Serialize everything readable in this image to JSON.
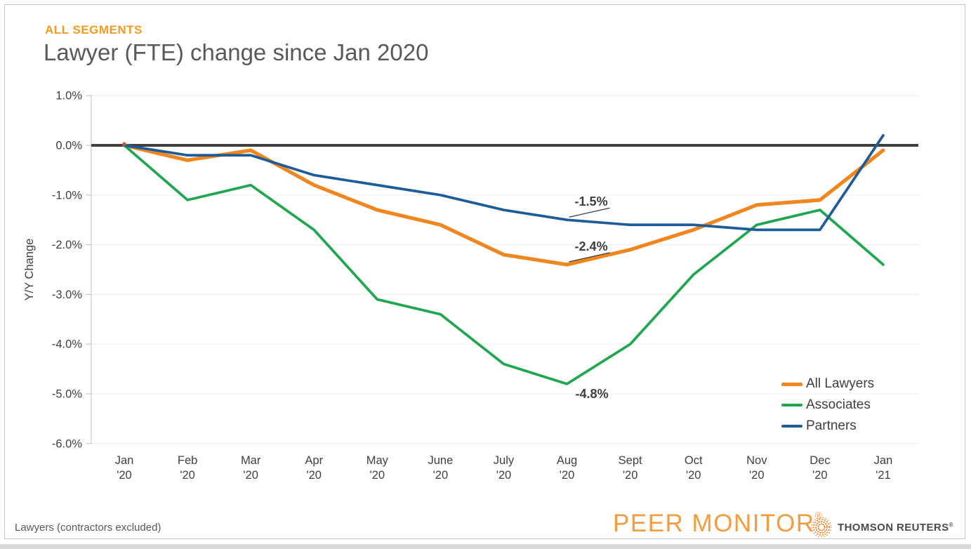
{
  "header": {
    "segment_label": "ALL SEGMENTS",
    "title": "Lawyer (FTE) change since Jan 2020"
  },
  "chart_data": {
    "type": "line",
    "title": "Lawyer (FTE) change since Jan 2020",
    "xlabel": "",
    "ylabel": "Y/Y Change",
    "ylim": [
      -6.0,
      1.0
    ],
    "grid": true,
    "legend_position": "inside-bottom-right",
    "yticks": [
      "1.0%",
      "0.0%",
      "-1.0%",
      "-2.0%",
      "-3.0%",
      "-4.0%",
      "-5.0%",
      "-6.0%"
    ],
    "categories": [
      "Jan '20",
      "Feb '20",
      "Mar '20",
      "Apr '20",
      "May '20",
      "June '20",
      "July '20",
      "Aug '20",
      "Sept '20",
      "Oct '20",
      "Nov '20",
      "Dec '20",
      "Jan '21"
    ],
    "series": [
      {
        "name": "All Lawyers",
        "color": "#F0871E",
        "values": [
          0.0,
          -0.3,
          -0.1,
          -0.8,
          -1.3,
          -1.6,
          -2.2,
          -2.4,
          -2.1,
          -1.7,
          -1.2,
          -1.1,
          -0.1
        ]
      },
      {
        "name": "Associates",
        "color": "#1FA750",
        "values": [
          0.0,
          -1.1,
          -0.8,
          -1.7,
          -3.1,
          -3.4,
          -4.4,
          -4.8,
          -4.0,
          -2.6,
          -1.6,
          -1.3,
          -2.4
        ]
      },
      {
        "name": "Partners",
        "color": "#1D5C99",
        "values": [
          0.0,
          -0.2,
          -0.2,
          -0.6,
          -0.8,
          -1.0,
          -1.3,
          -1.5,
          -1.6,
          -1.6,
          -1.7,
          -1.7,
          0.2
        ]
      }
    ],
    "annotations": [
      {
        "text": "-1.5%",
        "series": "Partners",
        "category": "Aug '20",
        "value": -1.5
      },
      {
        "text": "-2.4%",
        "series": "All Lawyers",
        "category": "Aug '20",
        "value": -2.4
      },
      {
        "text": "-4.8%",
        "series": "Associates",
        "category": "Aug '20",
        "value": -4.8
      }
    ]
  },
  "footer": {
    "note": "Lawyers (contractors excluded)",
    "brand": "PEER MONITOR",
    "brand_reg": "®",
    "brand_color": "#F59C3F",
    "logo_text": "THOMSON REUTERS",
    "logo_reg": "®"
  }
}
